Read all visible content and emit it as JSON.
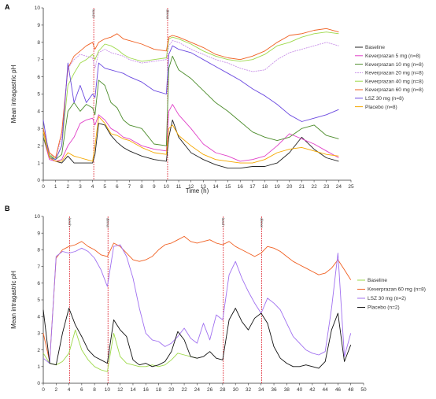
{
  "chart_data": [
    {
      "panel": "A",
      "type": "line",
      "xlabel": "Time (h)",
      "ylabel": "Mean intragastric pH",
      "xlim": [
        0,
        25
      ],
      "ylim": [
        0,
        10
      ],
      "xticks": [
        0,
        1,
        2,
        3,
        4,
        5,
        6,
        7,
        8,
        9,
        10,
        11,
        12,
        13,
        14,
        15,
        16,
        17,
        18,
        19,
        20,
        21,
        22,
        23,
        24,
        25
      ],
      "yticks": [
        0,
        1,
        2,
        3,
        4,
        5,
        6,
        7,
        8,
        9,
        10
      ],
      "meal_markers": [
        {
          "x": 4.1,
          "label": "lunch"
        },
        {
          "x": 10.1,
          "label": "dinner"
        }
      ],
      "legend_position": "right",
      "series": [
        {
          "name": "Baseline",
          "color": "#222222",
          "dash": "",
          "x": [
            0,
            0.5,
            1,
            1.5,
            2,
            2.5,
            3,
            3.5,
            4,
            4.2,
            4.5,
            5,
            5.5,
            6,
            6.5,
            7,
            8,
            9,
            10,
            10.2,
            10.5,
            11,
            12,
            13,
            14,
            15,
            16,
            17,
            18,
            19,
            20,
            21,
            22,
            23,
            24
          ],
          "y": [
            2.5,
            1.3,
            1.1,
            1.0,
            1.4,
            1.0,
            1.0,
            1.0,
            1.0,
            1.5,
            3.3,
            3.2,
            2.6,
            2.2,
            1.9,
            1.7,
            1.4,
            1.2,
            1.1,
            2.5,
            3.5,
            2.5,
            1.6,
            1.2,
            0.9,
            0.7,
            0.7,
            0.8,
            0.8,
            1.0,
            1.6,
            2.5,
            1.8,
            1.3,
            1.1
          ]
        },
        {
          "name": "Keverprazan 5 mg (n=8)",
          "color": "#e040c8",
          "dash": "",
          "x": [
            0,
            0.5,
            1,
            1.5,
            2,
            2.5,
            3,
            3.5,
            4,
            4.2,
            4.5,
            5,
            5.5,
            6,
            6.5,
            7,
            8,
            9,
            10,
            10.2,
            10.5,
            11,
            12,
            13,
            14,
            15,
            16,
            17,
            18,
            19,
            20,
            21,
            22,
            23,
            24
          ],
          "y": [
            2.5,
            1.2,
            1.1,
            1.2,
            2.0,
            2.5,
            3.3,
            3.5,
            3.6,
            3.2,
            3.8,
            3.5,
            3.0,
            2.8,
            2.5,
            2.4,
            2.0,
            1.8,
            1.7,
            4.0,
            4.4,
            3.8,
            3.0,
            2.1,
            1.6,
            1.4,
            1.1,
            1.2,
            1.4,
            2.0,
            2.7,
            2.4,
            2.1,
            1.7,
            1.3
          ]
        },
        {
          "name": "Keverprazan 10 mg (n=8)",
          "color": "#4c8c2b",
          "dash": "",
          "x": [
            0,
            0.5,
            1,
            1.5,
            2,
            2.5,
            3,
            3.5,
            4,
            4.2,
            4.5,
            5,
            5.5,
            6,
            6.5,
            7,
            8,
            9,
            10,
            10.2,
            10.5,
            11,
            12,
            13,
            14,
            15,
            16,
            17,
            18,
            19,
            20,
            21,
            22,
            23,
            24
          ],
          "y": [
            2.5,
            1.4,
            1.2,
            1.5,
            4.0,
            4.5,
            4.0,
            4.4,
            4.2,
            3.8,
            5.8,
            5.5,
            4.5,
            4.2,
            3.5,
            3.2,
            3.0,
            2.1,
            2.0,
            6.5,
            7.2,
            6.4,
            5.9,
            5.2,
            4.5,
            4.0,
            3.4,
            2.8,
            2.5,
            2.3,
            2.5,
            3.0,
            3.2,
            2.6,
            2.4
          ]
        },
        {
          "name": "Keverprazan 20 mg (n=8)",
          "color": "#c890e8",
          "dash": "2,1",
          "x": [
            0,
            0.5,
            1,
            1.5,
            2,
            2.5,
            3,
            3.5,
            4,
            4.2,
            4.5,
            5,
            5.5,
            6,
            6.5,
            7,
            8,
            9,
            10,
            10.2,
            10.5,
            11,
            12,
            13,
            14,
            15,
            16,
            17,
            18,
            19,
            20,
            21,
            22,
            23,
            24
          ],
          "y": [
            3.0,
            1.5,
            1.3,
            2.5,
            6.5,
            7.0,
            7.3,
            7.2,
            7.1,
            6.5,
            7.4,
            7.6,
            7.4,
            7.3,
            7.2,
            7.0,
            6.8,
            6.9,
            7.0,
            7.8,
            8.1,
            8.0,
            7.6,
            7.3,
            7.0,
            6.8,
            6.5,
            6.3,
            6.4,
            7.0,
            7.4,
            7.6,
            7.8,
            8.0,
            7.8
          ]
        },
        {
          "name": "Keverprazan 40 mg (n=8)",
          "color": "#9ed94a",
          "dash": "",
          "x": [
            0,
            0.5,
            1,
            1.5,
            2,
            2.5,
            3,
            3.5,
            4,
            4.2,
            4.5,
            5,
            5.5,
            6,
            6.5,
            7,
            8,
            9,
            10,
            10.2,
            10.5,
            11,
            12,
            13,
            14,
            15,
            16,
            17,
            18,
            19,
            20,
            21,
            22,
            23,
            24
          ],
          "y": [
            3.0,
            1.5,
            1.2,
            2.0,
            5.5,
            6.2,
            6.8,
            7.0,
            7.3,
            7.0,
            7.5,
            7.9,
            7.8,
            7.6,
            7.3,
            7.1,
            6.9,
            7.0,
            7.1,
            8.2,
            8.3,
            8.2,
            7.9,
            7.5,
            7.2,
            7.0,
            6.9,
            7.0,
            7.3,
            7.8,
            8.0,
            8.3,
            8.5,
            8.6,
            8.5
          ]
        },
        {
          "name": "Keverprazan 60 mg (n=8)",
          "color": "#f06022",
          "dash": "",
          "x": [
            0,
            0.5,
            1,
            1.5,
            2,
            2.5,
            3,
            3.5,
            4,
            4.2,
            4.5,
            5,
            5.5,
            6,
            6.5,
            7,
            8,
            9,
            10,
            10.2,
            10.5,
            11,
            12,
            13,
            14,
            15,
            16,
            17,
            18,
            19,
            20,
            21,
            22,
            23,
            24
          ],
          "y": [
            3.0,
            1.6,
            1.3,
            2.8,
            6.5,
            7.2,
            7.5,
            7.8,
            8.0,
            7.6,
            8.0,
            8.2,
            8.3,
            8.5,
            8.2,
            8.1,
            7.9,
            7.6,
            7.5,
            8.3,
            8.4,
            8.3,
            8.0,
            7.7,
            7.3,
            7.1,
            7.0,
            7.2,
            7.5,
            8.0,
            8.4,
            8.5,
            8.7,
            8.8,
            8.6
          ]
        },
        {
          "name": "LSZ 30 mg (n=8)",
          "color": "#6a48e0",
          "dash": "",
          "x": [
            0,
            0.5,
            1,
            1.5,
            2,
            2.5,
            3,
            3.5,
            4,
            4.2,
            4.5,
            5,
            5.5,
            6,
            6.5,
            7,
            8,
            9,
            10,
            10.2,
            10.5,
            11,
            12,
            13,
            14,
            15,
            16,
            17,
            18,
            19,
            20,
            21,
            22,
            23,
            24
          ],
          "y": [
            3.5,
            1.3,
            1.2,
            2.0,
            6.8,
            4.5,
            5.5,
            4.5,
            5.0,
            4.8,
            6.8,
            6.5,
            6.4,
            6.3,
            6.2,
            6.0,
            5.7,
            5.2,
            5.0,
            7.3,
            7.8,
            7.6,
            7.4,
            7.0,
            6.6,
            6.2,
            5.8,
            5.3,
            4.9,
            4.4,
            3.8,
            3.4,
            3.6,
            3.8,
            4.1
          ]
        },
        {
          "name": "Placebo (n=8)",
          "color": "#f5a800",
          "dash": "",
          "x": [
            0,
            0.5,
            1,
            1.5,
            2,
            2.5,
            3,
            3.5,
            4,
            4.2,
            4.5,
            5,
            5.5,
            6,
            6.5,
            7,
            8,
            9,
            10,
            10.2,
            10.5,
            11,
            12,
            13,
            14,
            15,
            16,
            17,
            18,
            19,
            20,
            21,
            22,
            23,
            24
          ],
          "y": [
            2.8,
            1.3,
            1.1,
            1.1,
            1.6,
            1.4,
            1.3,
            1.2,
            1.1,
            2.0,
            3.7,
            3.3,
            2.7,
            2.6,
            2.4,
            2.3,
            1.9,
            1.6,
            1.5,
            3.0,
            3.2,
            2.6,
            2.0,
            1.5,
            1.2,
            1.1,
            1.0,
            1.0,
            1.2,
            1.6,
            1.8,
            1.9,
            1.7,
            1.5,
            1.4
          ]
        }
      ]
    },
    {
      "panel": "B",
      "type": "line",
      "xlabel": "",
      "ylabel": "Mean intragastric pH",
      "xlim": [
        0,
        50
      ],
      "ylim": [
        0,
        10
      ],
      "xticks": [
        0,
        2,
        4,
        6,
        8,
        10,
        12,
        14,
        16,
        18,
        20,
        22,
        24,
        26,
        28,
        30,
        32,
        34,
        36,
        38,
        40,
        42,
        44,
        46,
        48,
        50
      ],
      "yticks": [
        0,
        1,
        2,
        3,
        4,
        5,
        6,
        7,
        8,
        9,
        10
      ],
      "meal_markers": [
        {
          "x": 4.1,
          "label": "lunch"
        },
        {
          "x": 10.1,
          "label": "dinner"
        },
        {
          "x": 28.1,
          "label": "lunch"
        },
        {
          "x": 34.1,
          "label": "dinner"
        }
      ],
      "legend_position": "right",
      "series": [
        {
          "name": "Baseline",
          "color": "#9ed94a",
          "dash": "",
          "x": [
            0,
            1,
            2,
            3,
            4,
            5,
            6,
            7,
            8,
            9,
            10,
            11,
            12,
            13,
            14,
            15,
            16,
            17,
            18,
            19,
            20,
            21,
            22,
            23,
            24
          ],
          "y": [
            1.8,
            1.2,
            1.1,
            1.3,
            1.8,
            3.2,
            2.0,
            1.4,
            1.0,
            0.8,
            0.7,
            3.0,
            1.6,
            1.2,
            1.1,
            1.0,
            1.0,
            1.1,
            1.0,
            1.1,
            1.4,
            1.8,
            1.7,
            1.6,
            1.5
          ]
        },
        {
          "name": "Keverprazan 60 mg (n=8)",
          "color": "#f06022",
          "dash": "",
          "x": [
            0,
            1,
            2,
            3,
            4,
            5,
            6,
            7,
            8,
            9,
            10,
            11,
            12,
            13,
            14,
            15,
            16,
            17,
            18,
            19,
            20,
            21,
            22,
            23,
            24,
            25,
            26,
            27,
            28,
            29,
            30,
            31,
            32,
            33,
            34,
            35,
            36,
            37,
            38,
            39,
            40,
            41,
            42,
            43,
            44,
            45,
            46,
            47,
            48
          ],
          "y": [
            3.0,
            1.3,
            7.5,
            8.0,
            8.2,
            8.3,
            8.5,
            8.2,
            8.0,
            7.7,
            7.6,
            8.4,
            8.2,
            7.8,
            7.4,
            7.3,
            7.4,
            7.6,
            8.0,
            8.3,
            8.4,
            8.6,
            8.8,
            8.5,
            8.4,
            8.5,
            8.6,
            8.4,
            8.3,
            8.5,
            8.2,
            8.0,
            7.8,
            7.6,
            7.8,
            8.2,
            8.1,
            7.9,
            7.6,
            7.3,
            7.1,
            6.9,
            6.7,
            6.5,
            6.6,
            6.9,
            7.4,
            6.8,
            6.2
          ]
        },
        {
          "name": "LSZ 30 mg (n=2)",
          "color": "#a070f0",
          "dash": "",
          "x": [
            0,
            1,
            2,
            3,
            4,
            5,
            6,
            7,
            8,
            9,
            10,
            11,
            12,
            13,
            14,
            15,
            16,
            17,
            18,
            19,
            20,
            21,
            22,
            23,
            24,
            25,
            26,
            27,
            28,
            29,
            30,
            31,
            32,
            33,
            34,
            35,
            36,
            37,
            38,
            39,
            40,
            41,
            42,
            43,
            44,
            45,
            46,
            47,
            48
          ],
          "y": [
            1.5,
            1.2,
            7.6,
            7.9,
            7.8,
            7.9,
            8.1,
            7.9,
            7.5,
            6.8,
            5.8,
            8.2,
            8.3,
            7.6,
            6.3,
            4.5,
            3.0,
            2.6,
            2.5,
            2.2,
            2.4,
            2.8,
            3.3,
            2.7,
            2.4,
            3.6,
            2.6,
            4.1,
            3.8,
            6.5,
            7.3,
            6.3,
            5.5,
            4.8,
            4.2,
            5.1,
            4.8,
            4.4,
            3.6,
            2.8,
            2.4,
            2.0,
            1.8,
            1.7,
            1.9,
            4.5,
            7.8,
            1.6,
            3.0
          ]
        },
        {
          "name": "Placebo (n=2)",
          "color": "#111111",
          "dash": "",
          "x": [
            0,
            1,
            2,
            3,
            4,
            5,
            6,
            7,
            8,
            9,
            10,
            11,
            12,
            13,
            14,
            15,
            16,
            17,
            18,
            19,
            20,
            21,
            22,
            23,
            24,
            25,
            26,
            27,
            28,
            29,
            30,
            31,
            32,
            33,
            34,
            35,
            36,
            37,
            38,
            39,
            40,
            41,
            42,
            43,
            44,
            45,
            46,
            47,
            48
          ],
          "y": [
            4.4,
            1.2,
            1.1,
            3.0,
            4.5,
            3.5,
            2.8,
            2.0,
            1.6,
            1.4,
            1.2,
            3.8,
            3.2,
            2.8,
            1.4,
            1.1,
            1.2,
            1.0,
            1.1,
            1.3,
            1.9,
            3.1,
            2.6,
            1.6,
            1.5,
            1.6,
            1.9,
            1.5,
            1.4,
            3.8,
            4.5,
            3.7,
            3.2,
            3.9,
            4.2,
            3.6,
            2.2,
            1.5,
            1.2,
            1.0,
            1.0,
            1.1,
            1.0,
            0.9,
            1.3,
            3.2,
            4.2,
            1.3,
            2.3
          ]
        }
      ]
    }
  ]
}
